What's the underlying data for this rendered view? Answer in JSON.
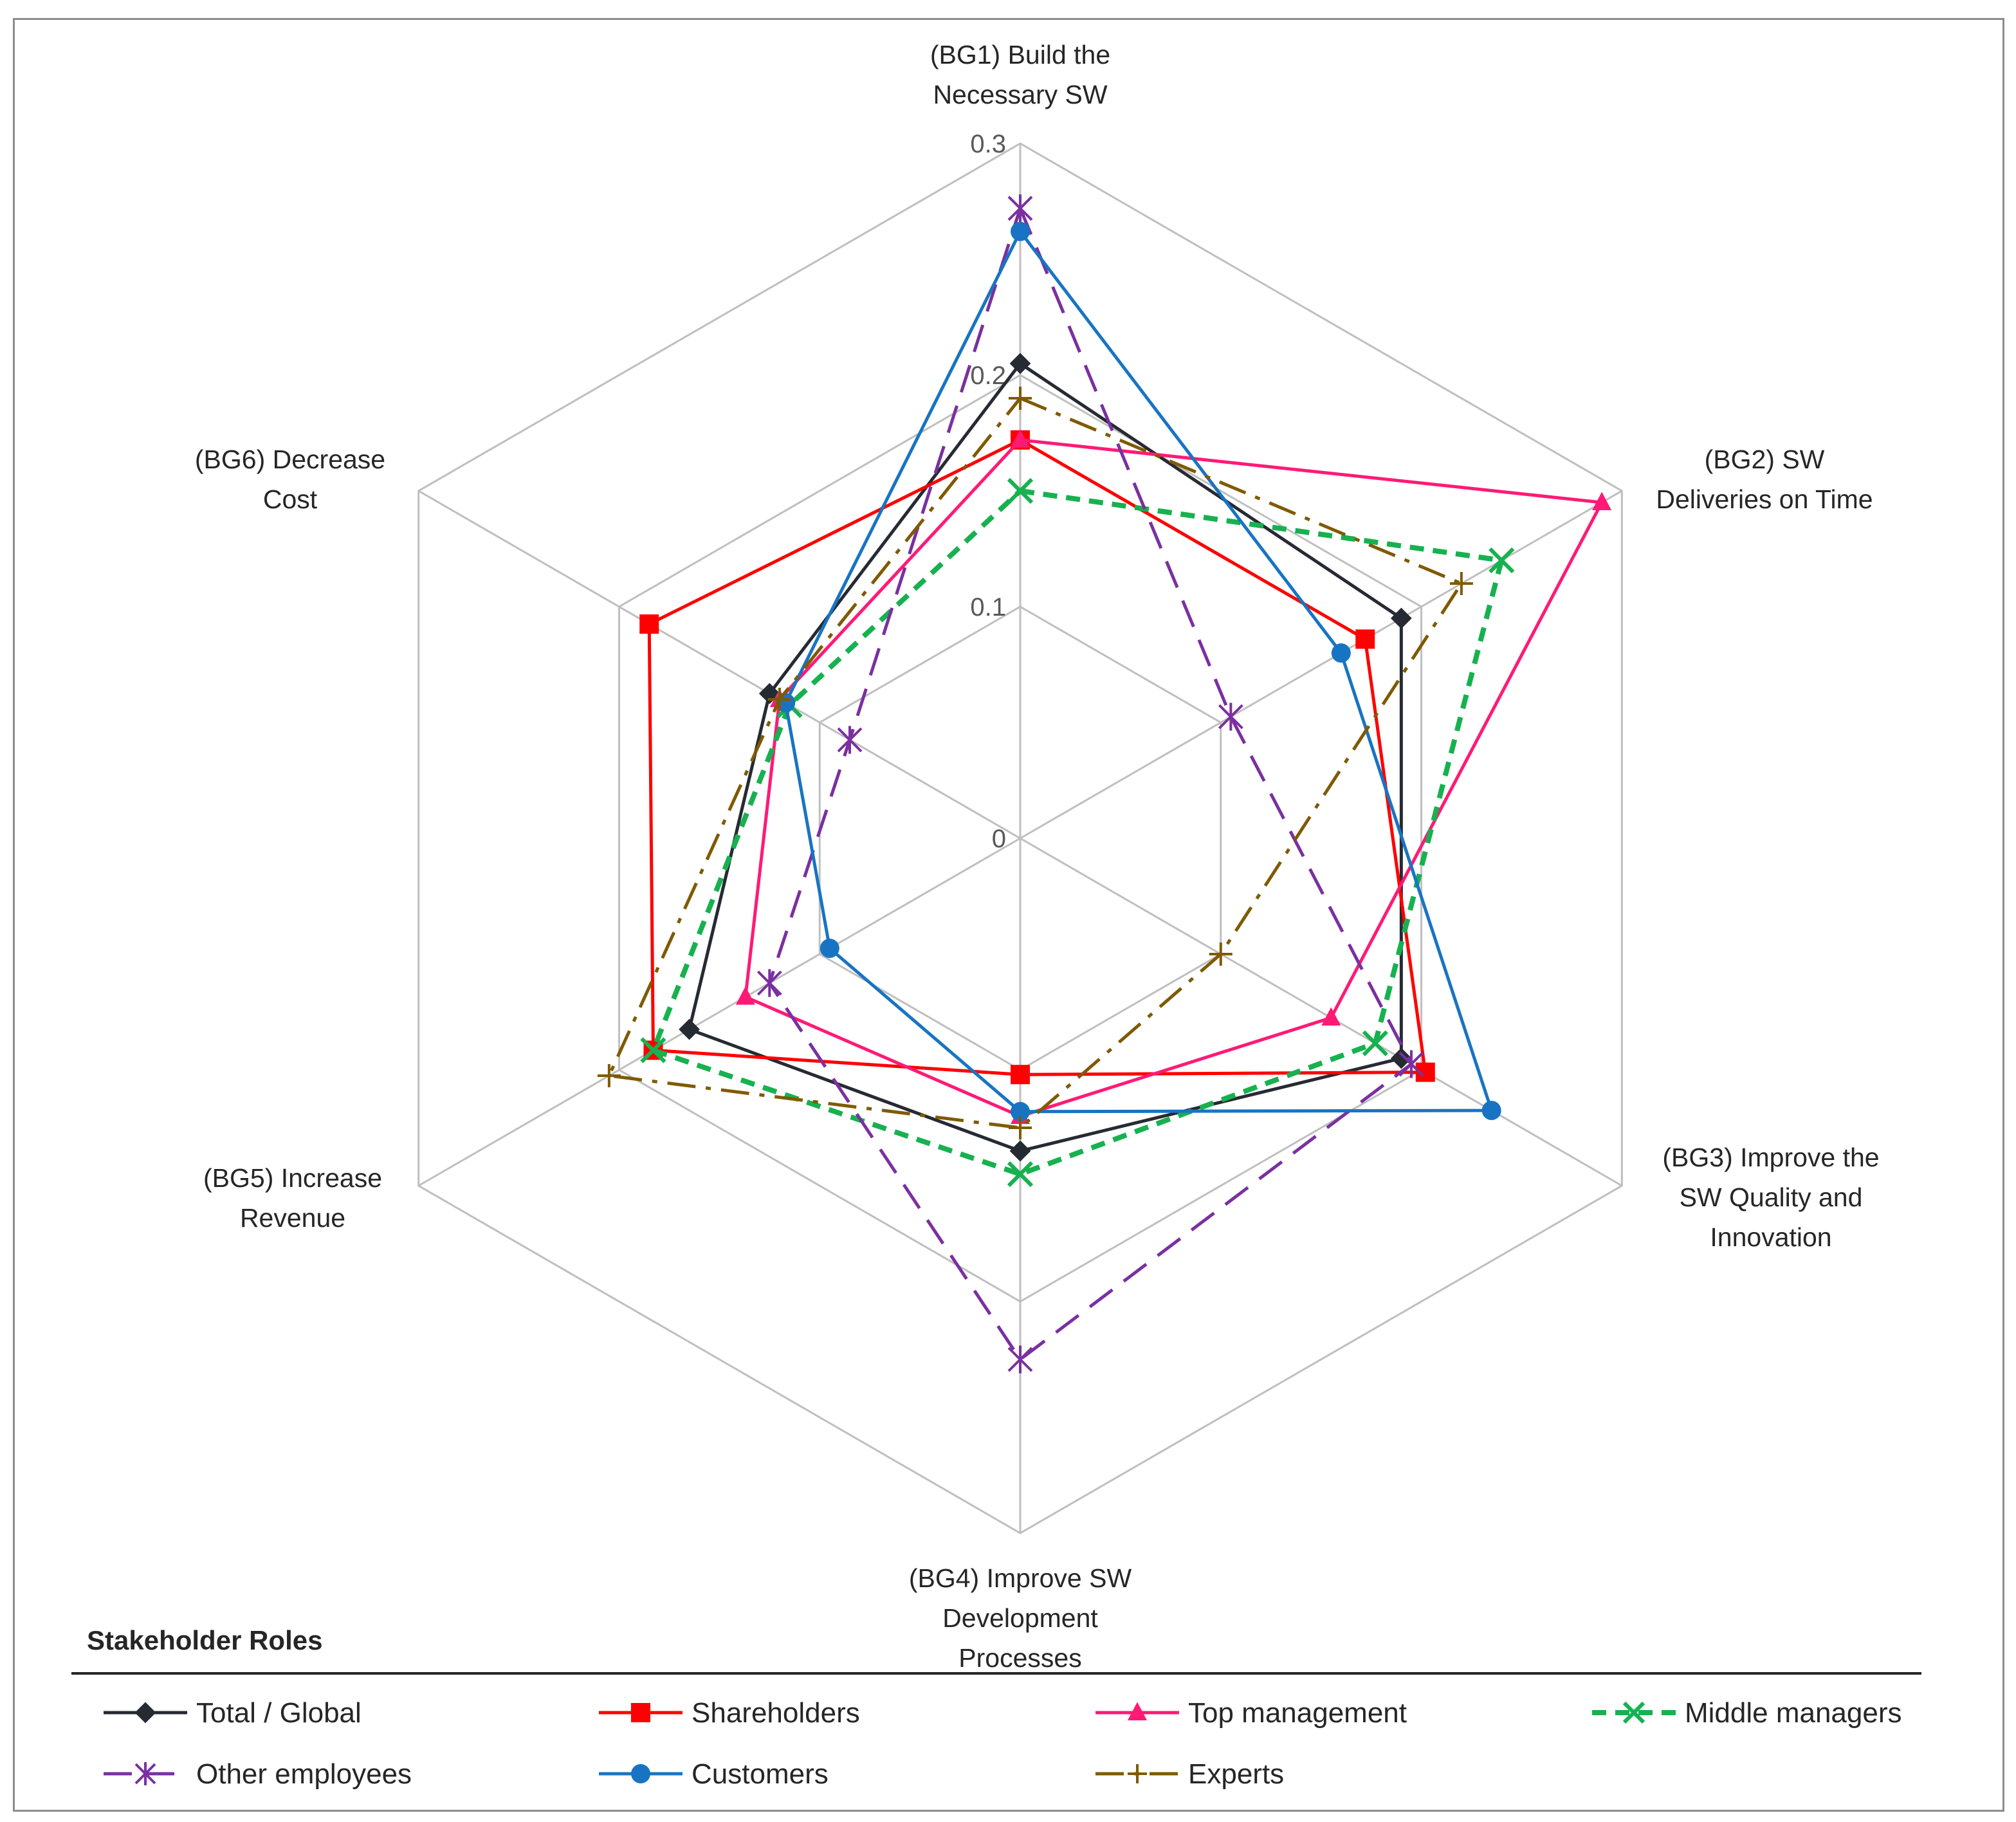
{
  "chart_data": {
    "type": "radar",
    "title": "",
    "axes": [
      [
        "(BG1) Build the",
        "Necessary SW"
      ],
      [
        "(BG2) SW",
        "Deliveries on Time"
      ],
      [
        "(BG3) Improve the",
        "SW Quality and",
        "Innovation"
      ],
      [
        "(BG4) Improve SW",
        "Development",
        "Processes"
      ],
      [
        "(BG5) Increase",
        "Revenue"
      ],
      [
        "(BG6) Decrease",
        "Cost"
      ]
    ],
    "range": [
      0,
      0.3
    ],
    "ticks": [
      "0",
      "0.1",
      "0.2",
      "0.3"
    ],
    "legend_title": "Stakeholder Roles",
    "series": [
      {
        "name": "Total / Global",
        "color": "#262a33",
        "dash": "solid",
        "marker": "diamond",
        "values": [
          0.205,
          0.19,
          0.19,
          0.135,
          0.165,
          0.125
        ]
      },
      {
        "name": "Shareholders",
        "color": "#ff0000",
        "dash": "solid",
        "marker": "square",
        "values": [
          0.172,
          0.172,
          0.202,
          0.102,
          0.183,
          0.185
        ]
      },
      {
        "name": "Top management",
        "color": "#ff1a75",
        "dash": "solid",
        "marker": "triangle",
        "values": [
          0.172,
          0.29,
          0.155,
          0.12,
          0.137,
          0.12
        ]
      },
      {
        "name": "Middle managers",
        "color": "#17b14f",
        "dash": "dashed",
        "marker": "x",
        "values": [
          0.15,
          0.24,
          0.177,
          0.145,
          0.183,
          0.115
        ]
      },
      {
        "name": "Other employees",
        "color": "#7a30a0",
        "dash": "longdash",
        "marker": "star",
        "values": [
          0.272,
          0.105,
          0.195,
          0.225,
          0.125,
          0.085
        ]
      },
      {
        "name": "Customers",
        "color": "#1874c3",
        "dash": "solid",
        "marker": "circle",
        "values": [
          0.262,
          0.16,
          0.235,
          0.118,
          0.095,
          0.117
        ]
      },
      {
        "name": "Experts",
        "color": "#7f5a00",
        "dash": "dashdot",
        "marker": "plus",
        "values": [
          0.19,
          0.22,
          0.1,
          0.125,
          0.205,
          0.12
        ]
      }
    ]
  }
}
